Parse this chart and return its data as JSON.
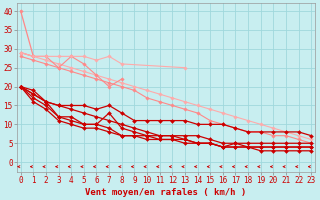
{
  "title": "",
  "xlabel": "Vent moyen/en rafales ( km/h )",
  "x": [
    0,
    1,
    2,
    3,
    4,
    5,
    6,
    7,
    8,
    9,
    10,
    11,
    12,
    13,
    14,
    15,
    16,
    17,
    18,
    19,
    20,
    21,
    22,
    23
  ],
  "curve_light1": [
    40,
    28,
    null,
    null,
    null,
    null,
    null,
    null,
    null,
    null,
    null,
    null,
    null,
    null,
    null,
    null,
    null,
    null,
    null,
    null,
    null,
    null,
    null,
    null
  ],
  "curve_light2": [
    29,
    28,
    28,
    25,
    28,
    26,
    23,
    20,
    22,
    null,
    null,
    null,
    null,
    null,
    null,
    null,
    null,
    null,
    null,
    null,
    null,
    null,
    null,
    null
  ],
  "curve_light3": [
    29,
    28,
    27,
    26,
    25,
    24,
    23,
    22,
    21,
    20,
    19,
    18,
    17,
    16,
    15,
    14,
    13,
    12,
    11,
    10,
    9,
    8,
    7,
    6
  ],
  "curve_light4": [
    28,
    27,
    26,
    25,
    24,
    23,
    22,
    21,
    20,
    19,
    17,
    16,
    15,
    14,
    13,
    11,
    10,
    9,
    8,
    8,
    7,
    7,
    6,
    5
  ],
  "curve_light5": [
    29,
    28,
    28,
    28,
    28,
    28,
    27,
    28,
    26,
    null,
    null,
    null,
    null,
    25,
    null,
    null,
    null,
    null,
    null,
    null,
    null,
    null,
    null,
    null
  ],
  "curve_light6": [
    null,
    null,
    null,
    null,
    null,
    null,
    null,
    null,
    null,
    null,
    null,
    null,
    null,
    null,
    null,
    null,
    null,
    null,
    null,
    null,
    null,
    null,
    null,
    null
  ],
  "curve_red1": [
    20,
    19,
    16,
    15,
    15,
    15,
    14,
    15,
    13,
    11,
    11,
    11,
    11,
    11,
    10,
    10,
    10,
    9,
    8,
    8,
    8,
    8,
    8,
    7
  ],
  "curve_red2": [
    20,
    18,
    16,
    12,
    12,
    10,
    10,
    13,
    9,
    8,
    7,
    7,
    7,
    7,
    7,
    6,
    5,
    5,
    5,
    5,
    5,
    5,
    5,
    5
  ],
  "curve_red3": [
    20,
    17,
    15,
    12,
    11,
    10,
    10,
    9,
    7,
    7,
    7,
    6,
    6,
    6,
    5,
    5,
    4,
    5,
    4,
    4,
    4,
    4,
    4,
    4
  ],
  "curve_red4": [
    20,
    16,
    14,
    11,
    10,
    9,
    9,
    8,
    7,
    7,
    6,
    6,
    6,
    5,
    5,
    5,
    4,
    4,
    4,
    4,
    4,
    4,
    4,
    4
  ],
  "curve_red_straight": [
    20,
    18,
    16,
    15,
    14,
    13,
    12,
    11,
    10,
    9,
    8,
    7,
    7,
    6,
    5,
    5,
    4,
    4,
    4,
    3,
    3,
    3,
    3,
    3
  ],
  "ylim": [
    -2.5,
    42
  ],
  "xlim": [
    -0.3,
    23.3
  ],
  "bg_color": "#c8eef0",
  "grid_color": "#a0d8dc",
  "line_color_red": "#cc0000",
  "line_color_light": "#ff8888",
  "line_color_light2": "#ffaaaa",
  "xlabel_fontsize": 6.5,
  "tick_fontsize": 5.5
}
